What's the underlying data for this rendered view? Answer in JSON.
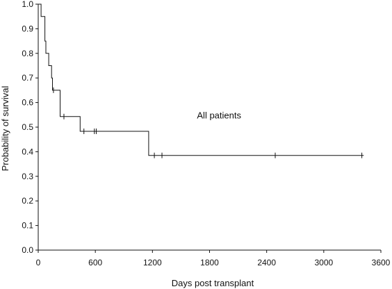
{
  "chart_data": {
    "type": "line",
    "subtype": "kaplan-meier step curve",
    "title": "",
    "xlabel": "Days post transplant",
    "ylabel": "Probability of survival",
    "xlim": [
      0,
      3600
    ],
    "ylim": [
      0.0,
      1.0
    ],
    "x_ticks": [
      0,
      600,
      1200,
      1800,
      2400,
      3000,
      3600
    ],
    "x_tick_labels": [
      "0",
      "600",
      "1200",
      "1800",
      "2400",
      "3000",
      "3600"
    ],
    "y_ticks": [
      0.0,
      0.1,
      0.2,
      0.3,
      0.4,
      0.5,
      0.6,
      0.7,
      0.8,
      0.9,
      1.0
    ],
    "y_tick_labels": [
      "0.0",
      "0.1",
      "0.2",
      "0.3",
      "0.4",
      "0.5",
      "0.6",
      "0.7",
      "0.8",
      "0.9",
      "1.0"
    ],
    "grid": false,
    "legend": "none",
    "line_color": "#111111",
    "annotation": {
      "text": "All patients",
      "x": 1900,
      "y": 0.535
    },
    "series": [
      {
        "step_points": [
          [
            0,
            1.0
          ],
          [
            30,
            1.0
          ],
          [
            30,
            0.95
          ],
          [
            70,
            0.95
          ],
          [
            70,
            0.85
          ],
          [
            80,
            0.85
          ],
          [
            80,
            0.8
          ],
          [
            110,
            0.8
          ],
          [
            110,
            0.75
          ],
          [
            140,
            0.75
          ],
          [
            140,
            0.7
          ],
          [
            150,
            0.7
          ],
          [
            150,
            0.65
          ],
          [
            230,
            0.65
          ],
          [
            230,
            0.543
          ],
          [
            440,
            0.543
          ],
          [
            440,
            0.483
          ],
          [
            1160,
            0.483
          ],
          [
            1160,
            0.385
          ],
          [
            3420,
            0.385
          ]
        ],
        "censor_marks": [
          [
            160,
            0.65
          ],
          [
            270,
            0.543
          ],
          [
            480,
            0.483
          ],
          [
            590,
            0.483
          ],
          [
            610,
            0.483
          ],
          [
            1220,
            0.385
          ],
          [
            1300,
            0.385
          ],
          [
            2490,
            0.385
          ],
          [
            3400,
            0.385
          ]
        ]
      }
    ]
  }
}
